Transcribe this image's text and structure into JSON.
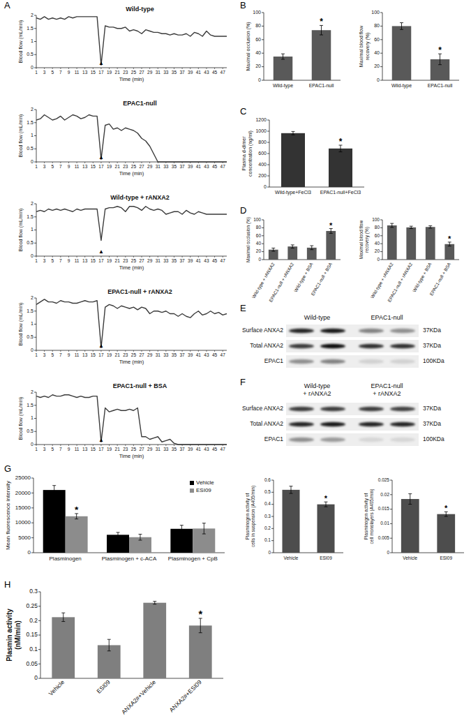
{
  "panel_labels": [
    "A",
    "B",
    "C",
    "D",
    "E",
    "F",
    "G",
    "H"
  ],
  "chart_data": [
    {
      "type": "line",
      "title": "Wild-type",
      "xlabel": "Time (min)",
      "ylabel": "Blood flow (mL/min)",
      "color": "#3a3a3a",
      "grid": false,
      "x": [
        1,
        2,
        3,
        4,
        5,
        6,
        7,
        8,
        9,
        10,
        11,
        12,
        13,
        14,
        15,
        16,
        17,
        18,
        19,
        20,
        21,
        22,
        23,
        24,
        25,
        26,
        27,
        28,
        29,
        30,
        31,
        32,
        33,
        34,
        35,
        36,
        37,
        38,
        39,
        40,
        41,
        42,
        43,
        44,
        45,
        46,
        47,
        48
      ],
      "values": [
        1.9,
        1.85,
        1.95,
        1.85,
        1.9,
        1.85,
        1.9,
        1.85,
        1.95,
        1.9,
        1.95,
        1.95,
        1.95,
        1.95,
        1.95,
        1.95,
        0.1,
        1.6,
        1.55,
        1.55,
        1.5,
        1.5,
        1.55,
        1.4,
        1.45,
        1.4,
        1.3,
        1.45,
        1.4,
        1.35,
        1.35,
        1.3,
        1.3,
        1.25,
        1.3,
        1.25,
        1.25,
        1.3,
        1.2,
        1.35,
        1.3,
        1.2,
        1.4,
        1.25,
        1.2,
        1.2,
        1.2,
        1.2
      ],
      "xlim": [
        1,
        48
      ],
      "xticks": [
        1,
        3,
        5,
        7,
        9,
        11,
        13,
        15,
        17,
        19,
        21,
        23,
        25,
        27,
        29,
        31,
        33,
        35,
        37,
        39,
        41,
        43,
        45,
        47
      ],
      "ylim": [
        0,
        2
      ],
      "yticks": [
        0,
        0.5,
        1,
        1.5,
        2
      ],
      "annotations": [
        {
          "x": 17,
          "y": 0.2,
          "text": "▲"
        }
      ]
    },
    {
      "type": "line",
      "title": "EPAC1-null",
      "xlabel": "Time (min)",
      "ylabel": "Blood flow (mL/min)",
      "color": "#3a3a3a",
      "grid": false,
      "x": [
        1,
        2,
        3,
        4,
        5,
        6,
        7,
        8,
        9,
        10,
        11,
        12,
        13,
        14,
        15,
        16,
        17,
        18,
        19,
        20,
        21,
        22,
        23,
        24,
        25,
        26,
        27,
        28,
        29,
        30,
        31,
        32,
        33,
        34,
        35,
        36,
        37,
        38,
        39,
        40,
        41,
        42,
        43,
        44,
        45,
        46,
        47,
        48
      ],
      "values": [
        1.6,
        1.65,
        1.8,
        1.7,
        1.6,
        1.65,
        1.75,
        1.6,
        1.7,
        1.8,
        1.75,
        1.65,
        1.7,
        1.8,
        1.75,
        1.75,
        0.1,
        1.4,
        1.45,
        1.25,
        1.3,
        1.2,
        1.3,
        1.25,
        1.2,
        1.1,
        0.9,
        0.8,
        0.6,
        0.3,
        0,
        0,
        0,
        0,
        0,
        0,
        0,
        0,
        0,
        0,
        0,
        0,
        0,
        0,
        0,
        0,
        0,
        0
      ],
      "xlim": [
        1,
        48
      ],
      "xticks": [
        1,
        3,
        5,
        7,
        9,
        11,
        13,
        15,
        17,
        19,
        21,
        23,
        25,
        27,
        29,
        31,
        33,
        35,
        37,
        39,
        41,
        43,
        45,
        47
      ],
      "ylim": [
        0,
        2
      ],
      "yticks": [
        0,
        0.5,
        1,
        1.5,
        2
      ],
      "annotations": [
        {
          "x": 17,
          "y": 0.2,
          "text": "▲"
        }
      ]
    },
    {
      "type": "line",
      "title": "Wild-type + rANXA2",
      "xlabel": "Time (min)",
      "ylabel": "Blood flow (mL/min)",
      "color": "#3a3a3a",
      "grid": false,
      "x": [
        1,
        2,
        3,
        4,
        5,
        6,
        7,
        8,
        9,
        10,
        11,
        12,
        13,
        14,
        15,
        16,
        17,
        18,
        19,
        20,
        21,
        22,
        23,
        24,
        25,
        26,
        27,
        28,
        29,
        30,
        31,
        32,
        33,
        34,
        35,
        36,
        37,
        38,
        39,
        40,
        41,
        42,
        43,
        44,
        45,
        46,
        47,
        48
      ],
      "values": [
        1.7,
        1.75,
        1.7,
        1.8,
        1.75,
        1.8,
        1.75,
        1.8,
        1.75,
        1.7,
        1.8,
        1.75,
        1.8,
        1.8,
        1.8,
        1.8,
        0.6,
        1.8,
        1.85,
        1.85,
        1.9,
        1.85,
        1.7,
        1.9,
        1.9,
        1.85,
        1.75,
        1.9,
        1.8,
        1.75,
        1.8,
        1.75,
        1.6,
        1.65,
        1.7,
        1.7,
        1.6,
        1.75,
        1.65,
        1.6,
        1.7,
        1.65,
        1.6,
        1.6,
        1.6,
        1.6,
        1.6,
        1.6
      ],
      "xlim": [
        1,
        48
      ],
      "xticks": [
        1,
        3,
        5,
        7,
        9,
        11,
        13,
        15,
        17,
        19,
        21,
        23,
        25,
        27,
        29,
        31,
        33,
        35,
        37,
        39,
        41,
        43,
        45,
        47
      ],
      "ylim": [
        0,
        2
      ],
      "yticks": [
        0,
        0.5,
        1,
        1.5,
        2
      ],
      "annotations": [
        {
          "x": 17,
          "y": 0.2,
          "text": "▲"
        }
      ]
    },
    {
      "type": "line",
      "title": "EPAC1-null + rANXA2",
      "xlabel": "Time (min)",
      "ylabel": "Blood flow (mL/min)",
      "color": "#3a3a3a",
      "grid": false,
      "x": [
        1,
        2,
        3,
        4,
        5,
        6,
        7,
        8,
        9,
        10,
        11,
        12,
        13,
        14,
        15,
        16,
        17,
        18,
        19,
        20,
        21,
        22,
        23,
        24,
        25,
        26,
        27,
        28,
        29,
        30,
        31,
        32,
        33,
        34,
        35,
        36,
        37,
        38,
        39,
        40,
        41,
        42,
        43,
        44,
        45,
        46,
        47,
        48
      ],
      "values": [
        1.75,
        1.85,
        1.95,
        1.85,
        1.85,
        1.8,
        1.9,
        1.85,
        1.85,
        1.8,
        1.8,
        1.85,
        1.9,
        1.85,
        1.85,
        1.9,
        0.1,
        1.65,
        1.75,
        1.7,
        1.6,
        1.7,
        1.65,
        1.6,
        1.65,
        1.55,
        1.65,
        1.6,
        1.4,
        1.5,
        1.5,
        1.45,
        1.5,
        1.4,
        1.4,
        1.3,
        1.4,
        1.3,
        1.25,
        1.4,
        1.5,
        1.35,
        1.4,
        1.5,
        1.4,
        1.45,
        1.35,
        1.4
      ],
      "xlim": [
        1,
        48
      ],
      "xticks": [
        1,
        3,
        5,
        7,
        9,
        11,
        13,
        15,
        17,
        19,
        21,
        23,
        25,
        27,
        29,
        31,
        33,
        35,
        37,
        39,
        41,
        43,
        45,
        47
      ],
      "ylim": [
        0,
        2
      ],
      "yticks": [
        0,
        0.5,
        1,
        1.5,
        2
      ],
      "annotations": [
        {
          "x": 17,
          "y": 0.2,
          "text": "▲"
        }
      ]
    },
    {
      "type": "line",
      "title": "EPAC1-null + BSA",
      "xlabel": "Time (min)",
      "ylabel": "Blood flow (mL/min)",
      "color": "#3a3a3a",
      "grid": false,
      "x": [
        1,
        2,
        3,
        4,
        5,
        6,
        7,
        8,
        9,
        10,
        11,
        12,
        13,
        14,
        15,
        16,
        17,
        18,
        19,
        20,
        21,
        22,
        23,
        24,
        25,
        26,
        27,
        28,
        29,
        30,
        31,
        32,
        33,
        34,
        35,
        36,
        37,
        38,
        39,
        40,
        41,
        42,
        43,
        44,
        45,
        46,
        47,
        48
      ],
      "values": [
        1.85,
        1.8,
        1.85,
        1.8,
        1.9,
        1.85,
        1.85,
        1.9,
        1.9,
        1.85,
        1.8,
        1.85,
        1.8,
        1.8,
        1.85,
        1.85,
        0.1,
        1.4,
        1.25,
        1.3,
        1.35,
        1.3,
        1.3,
        1.35,
        1.3,
        1.4,
        0.3,
        0.3,
        0.2,
        0.25,
        0.3,
        0.1,
        0.15,
        0.2,
        0.05,
        0,
        0,
        0,
        0,
        0,
        0,
        0,
        0,
        0,
        0,
        0,
        0,
        0
      ],
      "xlim": [
        1,
        48
      ],
      "xticks": [
        1,
        3,
        5,
        7,
        9,
        11,
        13,
        15,
        17,
        19,
        21,
        23,
        25,
        27,
        29,
        31,
        33,
        35,
        37,
        39,
        41,
        43,
        45,
        47
      ],
      "ylim": [
        0,
        2
      ],
      "yticks": [
        0,
        0.5,
        1,
        1.5,
        2
      ],
      "annotations": [
        {
          "x": 17,
          "y": 0.2,
          "text": "▲"
        }
      ]
    },
    {
      "type": "bar",
      "ylabel": "Maximal occlusion (%)",
      "color": "#595959",
      "grid": false,
      "categories": [
        "Wild-type",
        "EPAC1-null"
      ],
      "values": [
        35,
        74
      ],
      "errors": [
        4,
        7
      ],
      "ylim": [
        0,
        100
      ],
      "yticks": [
        0,
        20,
        40,
        60,
        80,
        100
      ],
      "annotations": [
        {
          "category": "EPAC1-null",
          "text": "*"
        }
      ]
    },
    {
      "type": "bar",
      "ylabel": [
        "Maximal blood flow",
        "recovery (%)"
      ],
      "color": "#595959",
      "grid": false,
      "categories": [
        "Wild-type",
        "EPAC1-null"
      ],
      "values": [
        80,
        31
      ],
      "errors": [
        5,
        8
      ],
      "ylim": [
        0,
        100
      ],
      "yticks": [
        0,
        20,
        40,
        60,
        80,
        100
      ],
      "annotations": [
        {
          "category": "EPAC1-null",
          "text": "*"
        }
      ]
    },
    {
      "type": "bar",
      "ylabel": [
        "Plasma d-dimer",
        "concentration (ng/ml)"
      ],
      "color": "#333333",
      "grid": false,
      "categories": [
        "Wild-type+FeCl3",
        "EPAC1-null+FeCl3"
      ],
      "values": [
        965,
        690
      ],
      "errors": [
        30,
        60
      ],
      "ylim": [
        0,
        1200
      ],
      "yticks": [
        0,
        200,
        400,
        600,
        800,
        1000,
        1200
      ],
      "annotations": [
        {
          "category": "EPAC1-null+FeCl3",
          "text": "*"
        }
      ]
    },
    {
      "type": "bar",
      "ylabel": "Maximal occlusion (%)",
      "color": "#595959",
      "grid": false,
      "categories": [
        "Wild-type + rANXA2",
        "EPAC1-null + rANXA2",
        "Wild-type + BSA",
        "EPAC1-null + BSA"
      ],
      "values": [
        25,
        33,
        30,
        72
      ],
      "errors": [
        4,
        4,
        5,
        6
      ],
      "ylim": [
        0,
        100
      ],
      "yticks": [
        0,
        20,
        40,
        60,
        80,
        100
      ],
      "annotations": [
        {
          "category": "EPAC1-null + BSA",
          "text": "*"
        }
      ]
    },
    {
      "type": "bar",
      "ylabel": [
        "Maximal blood flow",
        "recovery (%)"
      ],
      "color": "#595959",
      "grid": false,
      "categories": [
        "Wild-type + rANXA2",
        "EPAC1-null + rANXA2",
        "Wild-type + BSA",
        "EPAC1-null + BSA"
      ],
      "values": [
        86,
        81,
        82,
        39
      ],
      "errors": [
        5,
        3,
        3,
        5
      ],
      "ylim": [
        0,
        100
      ],
      "yticks": [
        0,
        20,
        40,
        60,
        80,
        100
      ],
      "annotations": [
        {
          "category": "EPAC1-null + BSA",
          "text": "*"
        }
      ]
    },
    {
      "type": "bar",
      "ylabel": "Mean fluorescence intensity",
      "grid": false,
      "legend": "upper right",
      "categories": [
        "Plasminogen",
        "Plasminogen + c-ACA",
        "Plasminogen + CpB"
      ],
      "series": [
        {
          "name": "Vehicle",
          "color": "#000000",
          "values": [
            21000,
            6000,
            8000
          ],
          "errors": [
            1500,
            800,
            1200
          ]
        },
        {
          "name": "ESI09",
          "color": "#8c8c8c",
          "values": [
            12200,
            5200,
            8100
          ],
          "errors": [
            900,
            1000,
            1800
          ]
        }
      ],
      "ylim": [
        0,
        25000
      ],
      "yticks": [
        0,
        5000,
        10000,
        15000,
        20000,
        25000
      ],
      "annotations": [
        {
          "series": "ESI09",
          "category": "Plasminogen",
          "text": "*"
        }
      ]
    },
    {
      "type": "bar",
      "ylabel": [
        "Plasminogen activity of",
        "cells in suspension (A405/min)"
      ],
      "color": "#4d4d4d",
      "grid": false,
      "categories": [
        "Vehicle",
        "ESI09"
      ],
      "values": [
        0.52,
        0.4
      ],
      "errors": [
        0.03,
        0.02
      ],
      "ylim": [
        0,
        0.6
      ],
      "yticks": [
        0,
        0.1,
        0.2,
        0.3,
        0.4,
        0.5,
        0.6
      ],
      "annotations": [
        {
          "category": "ESI09",
          "text": "*"
        }
      ]
    },
    {
      "type": "bar",
      "ylabel": [
        "Plasminogen activity of",
        "cell monolayers (A405/min)"
      ],
      "color": "#4d4d4d",
      "grid": false,
      "categories": [
        "Vehicle",
        "ESI09"
      ],
      "values": [
        0.0185,
        0.0133
      ],
      "errors": [
        0.0018,
        0.0008
      ],
      "ylim": [
        0,
        0.025
      ],
      "yticks": [
        0,
        0.005,
        0.01,
        0.015,
        0.02,
        0.025
      ],
      "annotations": [
        {
          "category": "ESI09",
          "text": "*"
        }
      ]
    },
    {
      "type": "bar",
      "ylabel": [
        "Plasmin activity",
        "(nM/min)"
      ],
      "color": "#7f7f7f",
      "grid": false,
      "categories": [
        "Vehicle",
        "ESI09",
        "ANXA2#+Vehicle",
        "ANXA2#+ESI09"
      ],
      "values": [
        0.212,
        0.115,
        0.262,
        0.183
      ],
      "errors": [
        0.015,
        0.02,
        0.005,
        0.025
      ],
      "ylim": [
        0,
        0.3
      ],
      "yticks": [
        0,
        0.05,
        0.1,
        0.15,
        0.2,
        0.25,
        0.3
      ],
      "annotations": [
        {
          "category": "ANXA2#+ESI09",
          "text": "*"
        }
      ]
    }
  ],
  "blots": [
    {
      "columns": [
        [
          "Wild-type"
        ],
        [
          "EPAC1-null"
        ]
      ],
      "rows": [
        {
          "label": "Surface ANXA2",
          "size": "37KDa"
        },
        {
          "label": "Total ANXA2",
          "size": "37KDa"
        },
        {
          "label": "EPAC1",
          "size": "100KDa"
        }
      ]
    },
    {
      "columns": [
        [
          "Wild-type",
          "+ rANXA2"
        ],
        [
          "EPAC1-null",
          "+ rANXA2"
        ]
      ],
      "rows": [
        {
          "label": "Surface ANXA2",
          "size": "37KDa"
        },
        {
          "label": "Total ANXA2",
          "size": "37KDa"
        },
        {
          "label": "EPAC1",
          "size": "100KDa"
        }
      ]
    }
  ]
}
